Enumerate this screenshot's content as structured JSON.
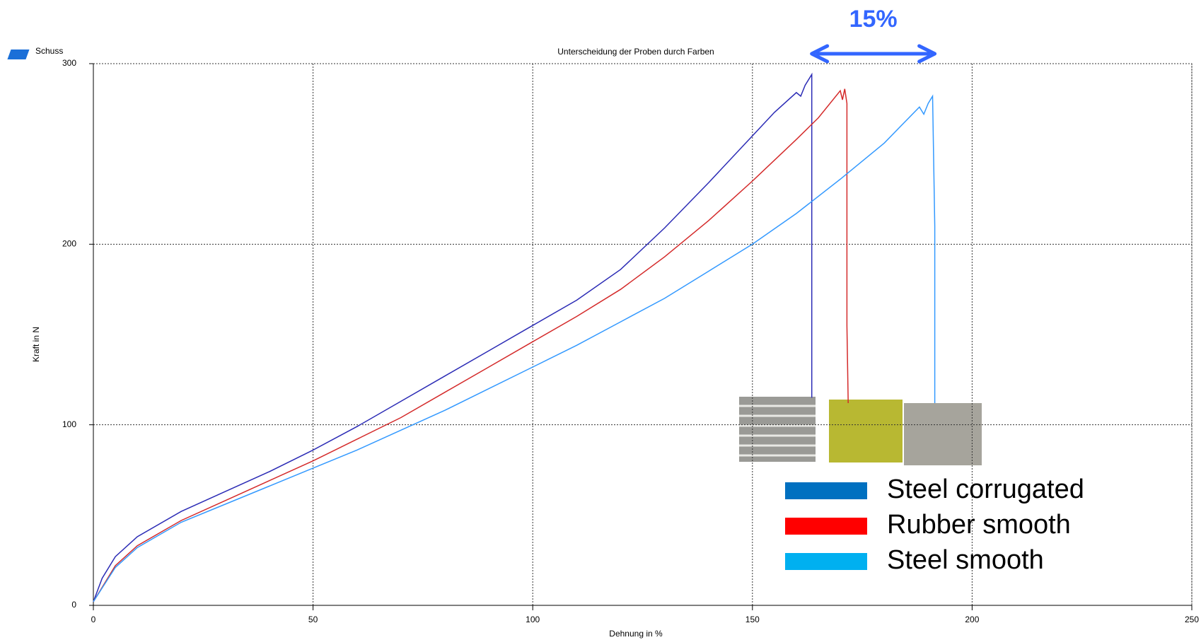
{
  "chart_data": {
    "type": "line",
    "title": "Unterscheidung der Proben durch Farben",
    "legend_title": "Schuss",
    "xlabel": "Dehnung in %",
    "ylabel": "Kraft in N",
    "xlim": [
      0,
      250
    ],
    "xticks": [
      0,
      50,
      100,
      150,
      200,
      250
    ],
    "ylim": [
      0,
      300
    ],
    "yticks": [
      0,
      100,
      200,
      300
    ],
    "grid": true,
    "annotation": {
      "text": "15%",
      "x": [
        163.5,
        191.5
      ],
      "color": "#3366ff"
    },
    "series": [
      {
        "name": "Steel corrugated",
        "color": "#2b2bb5",
        "legend_color": "#0070c0",
        "x": [
          0,
          2,
          5,
          10,
          20,
          30,
          40,
          50,
          60,
          70,
          80,
          90,
          100,
          110,
          120,
          130,
          140,
          150,
          155,
          160,
          161,
          162,
          163.5,
          163.5
        ],
        "values": [
          2,
          15,
          27,
          38,
          52,
          63,
          74,
          86,
          99,
          113,
          127,
          141,
          155,
          169,
          186,
          209,
          234,
          260,
          273,
          284,
          282,
          288,
          294,
          115
        ]
      },
      {
        "name": "Rubber smooth",
        "color": "#d42a2a",
        "legend_color": "#ff0000",
        "x": [
          0,
          5,
          10,
          20,
          30,
          40,
          50,
          60,
          70,
          80,
          90,
          100,
          110,
          120,
          130,
          140,
          150,
          160,
          165,
          170,
          170.5,
          171,
          171.5,
          171.5,
          171.8
        ],
        "values": [
          2,
          22,
          33,
          47,
          58,
          69,
          80,
          92,
          104,
          118,
          132,
          146,
          160,
          175,
          193,
          213,
          235,
          258,
          270,
          285,
          280,
          286,
          278,
          155,
          112
        ]
      },
      {
        "name": "Steel smooth",
        "color": "#3399ff",
        "legend_color": "#00b0f0",
        "x": [
          0,
          5,
          10,
          20,
          30,
          40,
          50,
          60,
          70,
          80,
          90,
          100,
          110,
          120,
          130,
          140,
          150,
          160,
          170,
          180,
          188,
          189,
          190,
          191,
          191.5,
          191.5
        ],
        "values": [
          2,
          21,
          32,
          46,
          56,
          66,
          76,
          86,
          97,
          108,
          120,
          132,
          144,
          157,
          170,
          185,
          200,
          217,
          236,
          256,
          276,
          272,
          278,
          282,
          210,
          112
        ]
      }
    ]
  }
}
